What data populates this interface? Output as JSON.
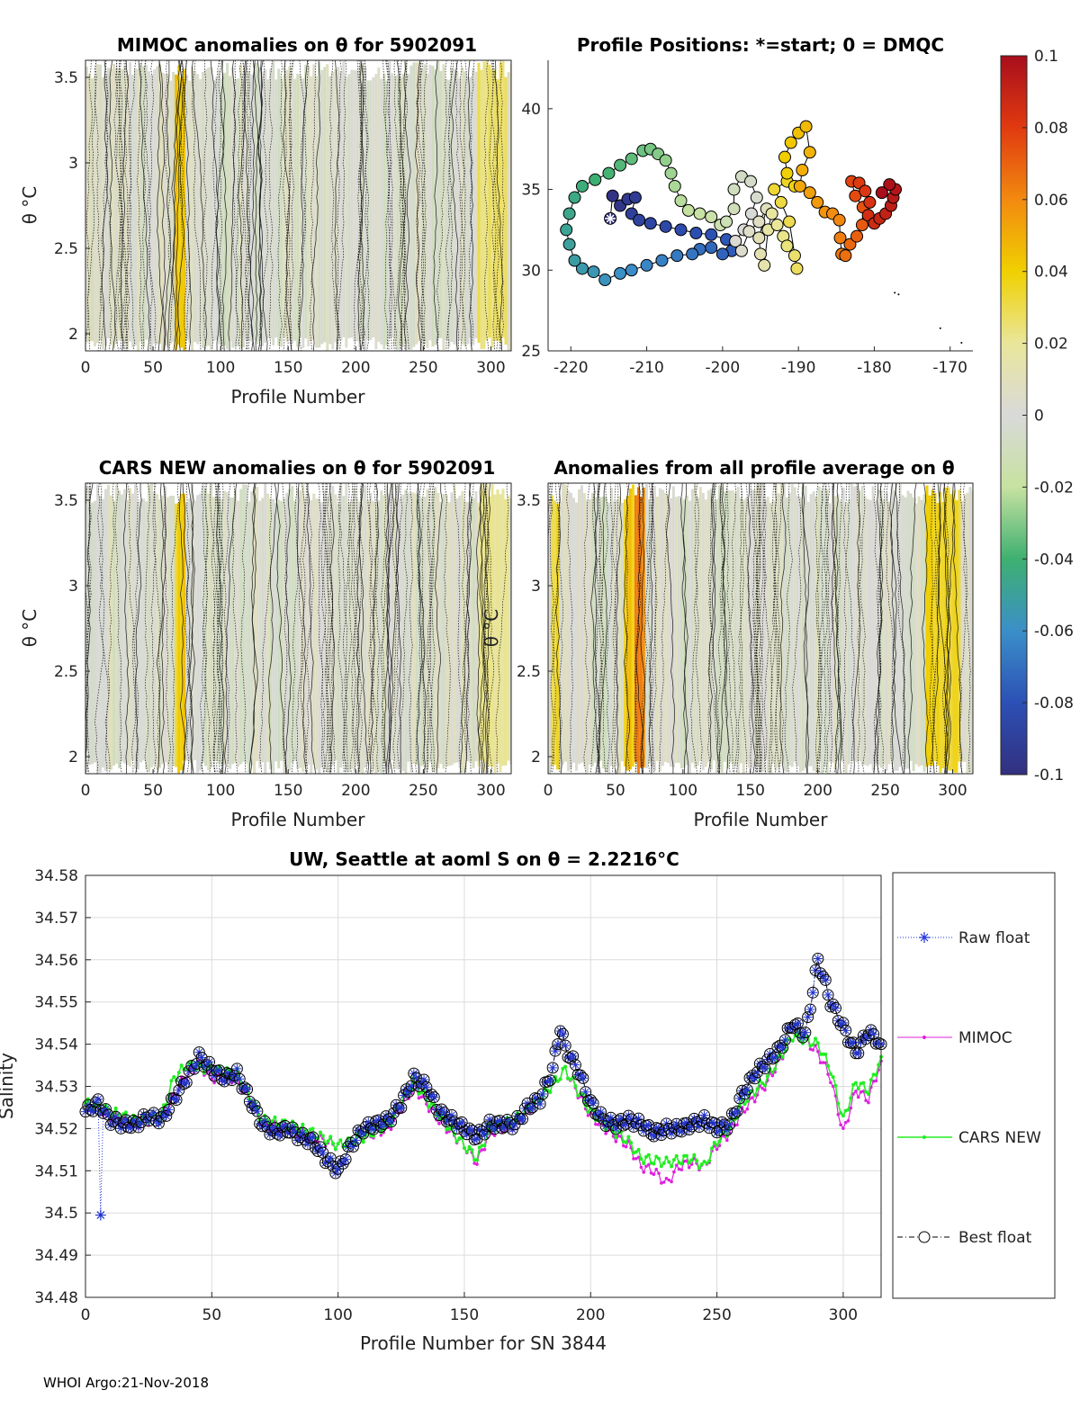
{
  "footer": "WHOI Argo:21-Nov-2018",
  "colorbar": {
    "tick_labels": [
      "0.1",
      "0.08",
      "0.06",
      "0.04",
      "0.02",
      "0",
      "-0.02",
      "-0.04",
      "-0.06",
      "-0.08",
      "-0.1"
    ],
    "range": [
      -0.1,
      0.1
    ]
  },
  "chart_data": [
    {
      "type": "heatmap",
      "title": "MIMOC anomalies on θ  for 5902091",
      "xlabel": "Profile Number",
      "ylabel": "θ °C",
      "xlim": [
        0,
        315
      ],
      "ylim": [
        1.9,
        3.6
      ],
      "xticks": [
        "0",
        "50",
        "100",
        "150",
        "200",
        "250",
        "300"
      ],
      "yticks": [
        "2",
        "2.5",
        "3",
        "3.5"
      ],
      "highlights": [
        {
          "x_from": 65,
          "x_to": 72,
          "value": 0.045
        },
        {
          "x_from": 290,
          "x_to": 310,
          "value": 0.025
        }
      ]
    },
    {
      "type": "scatter",
      "title": "Profile Positions: *=start; 0 = DMQC",
      "xlim": [
        -223,
        -167
      ],
      "ylim": [
        25,
        43
      ],
      "xticks": [
        "-220",
        "-210",
        "-200",
        "-190",
        "-180",
        "-170"
      ],
      "yticks": [
        "25",
        "30",
        "35",
        "40"
      ],
      "track": [
        [
          -214.8,
          33.2
        ],
        [
          -214.5,
          34.6
        ],
        [
          -213.5,
          34.0
        ],
        [
          -212.5,
          34.4
        ],
        [
          -211.5,
          34.5
        ],
        [
          -212,
          33.5
        ],
        [
          -211,
          33.1
        ],
        [
          -209.5,
          32.9
        ],
        [
          -207.5,
          32.7
        ],
        [
          -205.5,
          32.5
        ],
        [
          -203.5,
          32.3
        ],
        [
          -201.5,
          32.2
        ],
        [
          -199.5,
          31.9
        ],
        [
          -198.8,
          31.2
        ],
        [
          -200,
          31.0
        ],
        [
          -201.5,
          31.4
        ],
        [
          -203,
          31.3
        ],
        [
          -204,
          31.0
        ],
        [
          -206,
          30.9
        ],
        [
          -208,
          30.6
        ],
        [
          -210,
          30.3
        ],
        [
          -212,
          30.0
        ],
        [
          -213.5,
          29.8
        ],
        [
          -215.5,
          29.4
        ],
        [
          -217,
          29.9
        ],
        [
          -218.5,
          30.1
        ],
        [
          -219.5,
          30.6
        ],
        [
          -220.2,
          31.6
        ],
        [
          -220.6,
          32.5
        ],
        [
          -220.2,
          33.5
        ],
        [
          -219.5,
          34.5
        ],
        [
          -218.5,
          35.2
        ],
        [
          -216.8,
          35.6
        ],
        [
          -215,
          36.0
        ],
        [
          -213.5,
          36.5
        ],
        [
          -212,
          36.9
        ],
        [
          -210.5,
          37.4
        ],
        [
          -209.5,
          37.5
        ],
        [
          -208.5,
          37.2
        ],
        [
          -207.5,
          36.8
        ],
        [
          -206.8,
          36.0
        ],
        [
          -206.3,
          35.2
        ],
        [
          -205.5,
          34.3
        ],
        [
          -204.5,
          33.7
        ],
        [
          -203,
          33.5
        ],
        [
          -201.5,
          33.3
        ],
        [
          -200.3,
          32.8
        ],
        [
          -199.5,
          33.0
        ],
        [
          -198.5,
          33.8
        ],
        [
          -198.5,
          35.0
        ],
        [
          -197.5,
          35.8
        ],
        [
          -196.3,
          35.5
        ],
        [
          -195.5,
          34.5
        ],
        [
          -196.2,
          33.5
        ],
        [
          -197.2,
          32.5
        ],
        [
          -198.3,
          31.8
        ],
        [
          -197.5,
          31.2
        ],
        [
          -196.5,
          32.4
        ],
        [
          -195.2,
          33.0
        ],
        [
          -194.2,
          33.8
        ],
        [
          -195.2,
          32.0
        ],
        [
          -195,
          31.0
        ],
        [
          -194.5,
          30.3
        ],
        [
          -194,
          32.5
        ],
        [
          -193.5,
          33.5
        ],
        [
          -192.8,
          32.8
        ],
        [
          -192,
          32.1
        ],
        [
          -191.5,
          31.5
        ],
        [
          -190.5,
          30.9
        ],
        [
          -190.2,
          30.1
        ],
        [
          -191.2,
          33.0
        ],
        [
          -192.3,
          34.2
        ],
        [
          -193.2,
          35.0
        ],
        [
          -191.5,
          35.5
        ],
        [
          -190.5,
          35.2
        ],
        [
          -191.5,
          36.0
        ],
        [
          -191.8,
          37.0
        ],
        [
          -191,
          37.9
        ],
        [
          -190,
          38.5
        ],
        [
          -189,
          38.9
        ],
        [
          -188.5,
          37.3
        ],
        [
          -189.5,
          36.2
        ],
        [
          -189.8,
          35.2
        ],
        [
          -188.5,
          34.8
        ],
        [
          -187.5,
          34.2
        ],
        [
          -186.5,
          33.6
        ],
        [
          -185.5,
          33.5
        ],
        [
          -184.6,
          33.1
        ],
        [
          -184.5,
          32.0
        ],
        [
          -184.3,
          31.0
        ],
        [
          -183.8,
          30.9
        ],
        [
          -183.2,
          31.6
        ],
        [
          -182.3,
          32.1
        ],
        [
          -181.6,
          32.8
        ],
        [
          -181.5,
          33.9
        ],
        [
          -182.5,
          34.6
        ],
        [
          -183,
          35.5
        ],
        [
          -182,
          35.4
        ],
        [
          -181.2,
          34.9
        ],
        [
          -180.6,
          34.2
        ],
        [
          -180.8,
          33.4
        ],
        [
          -180.0,
          32.9
        ],
        [
          -179.3,
          33.2
        ],
        [
          -178.5,
          33.5
        ],
        [
          -177.8,
          34.0
        ],
        [
          -177.5,
          34.5
        ],
        [
          -177.2,
          35.0
        ],
        [
          -178,
          35.3
        ],
        [
          -179,
          34.8
        ]
      ]
    },
    {
      "type": "heatmap",
      "title": "CARS NEW anomalies on θ for 5902091",
      "xlabel": "Profile Number",
      "ylabel": "θ °C",
      "xlim": [
        0,
        315
      ],
      "ylim": [
        1.9,
        3.6
      ],
      "xticks": [
        "0",
        "50",
        "100",
        "150",
        "200",
        "250",
        "300"
      ],
      "yticks": [
        "2",
        "2.5",
        "3",
        "3.5"
      ],
      "highlights": [
        {
          "x_from": 65,
          "x_to": 72,
          "value": 0.04
        },
        {
          "x_from": 290,
          "x_to": 312,
          "value": 0.02
        }
      ]
    },
    {
      "type": "heatmap",
      "title": "Anomalies from all profile average on θ",
      "xlabel": "Profile Number",
      "ylabel": "θ °C",
      "xlim": [
        0,
        315
      ],
      "ylim": [
        1.9,
        3.6
      ],
      "xticks": [
        "0",
        "50",
        "100",
        "150",
        "200",
        "250",
        "300"
      ],
      "yticks": [
        "2",
        "2.5",
        "3",
        "3.5"
      ],
      "highlights": [
        {
          "x_from": 2,
          "x_to": 6,
          "value": 0.035
        },
        {
          "x_from": 55,
          "x_to": 62,
          "value": 0.04
        },
        {
          "x_from": 63,
          "x_to": 70,
          "value": 0.06
        },
        {
          "x_from": 280,
          "x_to": 305,
          "value": 0.035
        }
      ]
    },
    {
      "type": "line",
      "title": "UW, Seattle at aoml S on θ = 2.2216°C",
      "xlabel": "Profile Number for SN 3844",
      "ylabel": "Salinity",
      "xlim": [
        0,
        315
      ],
      "ylim": [
        34.48,
        34.58
      ],
      "xticks": [
        "0",
        "50",
        "100",
        "150",
        "200",
        "250",
        "300"
      ],
      "yticks": [
        "34.48",
        "34.49",
        "34.5",
        "34.51",
        "34.52",
        "34.53",
        "34.54",
        "34.55",
        "34.56",
        "34.57",
        "34.58"
      ],
      "legend": [
        "Raw float",
        "MIMOC",
        "CARS NEW",
        "Best float"
      ],
      "legend_position": "outside-right",
      "raw_outlier": {
        "x": 6,
        "y": 34.4995
      },
      "best_float": [
        [
          0,
          34.524
        ],
        [
          5,
          34.526
        ],
        [
          10,
          34.522
        ],
        [
          15,
          34.521
        ],
        [
          20,
          34.521
        ],
        [
          25,
          34.523
        ],
        [
          30,
          34.522
        ],
        [
          35,
          34.527
        ],
        [
          40,
          34.532
        ],
        [
          45,
          34.537
        ],
        [
          50,
          34.534
        ],
        [
          55,
          34.532
        ],
        [
          60,
          34.533
        ],
        [
          65,
          34.527
        ],
        [
          70,
          34.521
        ],
        [
          75,
          34.519
        ],
        [
          80,
          34.52
        ],
        [
          85,
          34.518
        ],
        [
          90,
          34.517
        ],
        [
          95,
          34.513
        ],
        [
          100,
          34.51
        ],
        [
          105,
          34.516
        ],
        [
          110,
          34.52
        ],
        [
          115,
          34.521
        ],
        [
          120,
          34.522
        ],
        [
          125,
          34.526
        ],
        [
          130,
          34.532
        ],
        [
          135,
          34.53
        ],
        [
          140,
          34.524
        ],
        [
          145,
          34.522
        ],
        [
          150,
          34.52
        ],
        [
          155,
          34.518
        ],
        [
          160,
          34.521
        ],
        [
          165,
          34.521
        ],
        [
          170,
          34.521
        ],
        [
          175,
          34.525
        ],
        [
          180,
          34.527
        ],
        [
          185,
          34.534
        ],
        [
          188,
          34.544
        ],
        [
          190,
          34.539
        ],
        [
          195,
          34.534
        ],
        [
          200,
          34.526
        ],
        [
          205,
          34.522
        ],
        [
          210,
          34.521
        ],
        [
          215,
          34.522
        ],
        [
          220,
          34.521
        ],
        [
          225,
          34.519
        ],
        [
          230,
          34.52
        ],
        [
          235,
          34.52
        ],
        [
          240,
          34.521
        ],
        [
          245,
          34.522
        ],
        [
          250,
          34.52
        ],
        [
          255,
          34.521
        ],
        [
          260,
          34.528
        ],
        [
          265,
          34.533
        ],
        [
          270,
          34.536
        ],
        [
          275,
          34.539
        ],
        [
          280,
          34.545
        ],
        [
          285,
          34.542
        ],
        [
          290,
          34.56
        ],
        [
          295,
          34.55
        ],
        [
          300,
          34.544
        ],
        [
          305,
          34.538
        ],
        [
          310,
          34.543
        ],
        [
          315,
          34.54
        ]
      ],
      "mimoc": [
        [
          0,
          34.526
        ],
        [
          10,
          34.523
        ],
        [
          20,
          34.521
        ],
        [
          30,
          34.523
        ],
        [
          40,
          34.533
        ],
        [
          45,
          34.535
        ],
        [
          50,
          34.532
        ],
        [
          60,
          34.532
        ],
        [
          70,
          34.521
        ],
        [
          80,
          34.52
        ],
        [
          90,
          34.518
        ],
        [
          100,
          34.516
        ],
        [
          110,
          34.518
        ],
        [
          120,
          34.52
        ],
        [
          130,
          34.53
        ],
        [
          140,
          34.522
        ],
        [
          150,
          34.516
        ],
        [
          155,
          34.512
        ],
        [
          160,
          34.519
        ],
        [
          170,
          34.521
        ],
        [
          180,
          34.527
        ],
        [
          190,
          34.534
        ],
        [
          200,
          34.523
        ],
        [
          210,
          34.518
        ],
        [
          215,
          34.516
        ],
        [
          220,
          34.511
        ],
        [
          225,
          34.51
        ],
        [
          230,
          34.507
        ],
        [
          235,
          34.511
        ],
        [
          240,
          34.512
        ],
        [
          245,
          34.511
        ],
        [
          250,
          34.516
        ],
        [
          255,
          34.519
        ],
        [
          260,
          34.524
        ],
        [
          270,
          34.531
        ],
        [
          280,
          34.542
        ],
        [
          285,
          34.541
        ],
        [
          290,
          34.538
        ],
        [
          295,
          34.532
        ],
        [
          300,
          34.519
        ],
        [
          305,
          34.529
        ],
        [
          310,
          34.527
        ],
        [
          315,
          34.536
        ]
      ],
      "cars": [
        [
          0,
          34.526
        ],
        [
          10,
          34.524
        ],
        [
          20,
          34.522
        ],
        [
          30,
          34.523
        ],
        [
          35,
          34.532
        ],
        [
          40,
          34.535
        ],
        [
          50,
          34.534
        ],
        [
          60,
          34.533
        ],
        [
          70,
          34.522
        ],
        [
          80,
          34.521
        ],
        [
          90,
          34.519
        ],
        [
          100,
          34.516
        ],
        [
          110,
          34.518
        ],
        [
          120,
          34.521
        ],
        [
          130,
          34.531
        ],
        [
          140,
          34.523
        ],
        [
          150,
          34.516
        ],
        [
          155,
          34.513
        ],
        [
          160,
          34.52
        ],
        [
          170,
          34.522
        ],
        [
          180,
          34.527
        ],
        [
          190,
          34.534
        ],
        [
          200,
          34.524
        ],
        [
          210,
          34.519
        ],
        [
          215,
          34.517
        ],
        [
          220,
          34.513
        ],
        [
          230,
          34.512
        ],
        [
          240,
          34.513
        ],
        [
          245,
          34.511
        ],
        [
          250,
          34.517
        ],
        [
          255,
          34.52
        ],
        [
          260,
          34.526
        ],
        [
          270,
          34.532
        ],
        [
          280,
          34.542
        ],
        [
          290,
          34.54
        ],
        [
          295,
          34.534
        ],
        [
          300,
          34.522
        ],
        [
          305,
          34.531
        ],
        [
          310,
          34.529
        ],
        [
          315,
          34.537
        ]
      ]
    }
  ]
}
